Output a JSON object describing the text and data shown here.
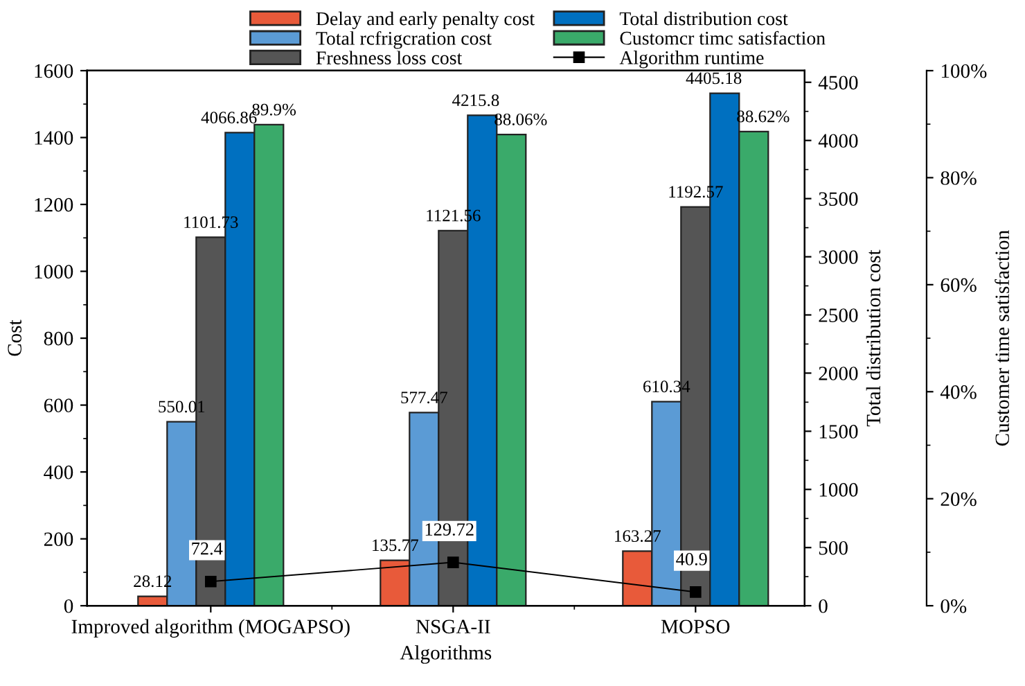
{
  "chart_data": {
    "type": "bar",
    "xlabel": "Algorithms",
    "ylabel": "Cost",
    "y2label": "Total distribution cost",
    "y3label": "Customer time satisfaction",
    "categories": [
      "Improved algorithm (MOGAPSO)",
      "NSGA-II",
      "MOPSO"
    ],
    "ylim": [
      0,
      1600
    ],
    "yticks": [
      0,
      200,
      400,
      600,
      800,
      1000,
      1200,
      1400,
      1600
    ],
    "y2lim": [
      0,
      4600
    ],
    "y2ticks": [
      0,
      500,
      1000,
      1500,
      2000,
      2500,
      3000,
      3500,
      4000,
      4500
    ],
    "y3lim": [
      0,
      100
    ],
    "y3ticks": [
      {
        "value": 0,
        "label": "0%"
      },
      {
        "value": 20,
        "label": "20%"
      },
      {
        "value": 40,
        "label": "40%"
      },
      {
        "value": 60,
        "label": "60%"
      },
      {
        "value": 80,
        "label": "80%"
      },
      {
        "value": 100,
        "label": "100%"
      }
    ],
    "legend": "top right",
    "grid": false,
    "series": [
      {
        "name": "Delay and early penalty cost",
        "color": "#e85a3a",
        "values": [
          28.12,
          135.77,
          163.27
        ],
        "value_labels": [
          "28.12",
          "135.77",
          "163.27"
        ]
      },
      {
        "name": "Total rcfrigcration cost",
        "color": "#5b9bd5",
        "values": [
          550.01,
          577.47,
          610.34
        ],
        "value_labels": [
          "550.01",
          "577.47",
          "610.34"
        ]
      },
      {
        "name": "Freshness loss cost",
        "color": "#555555",
        "values": [
          1101.73,
          1121.56,
          1192.57
        ],
        "value_labels": [
          "1101.73",
          "1121.56",
          "1192.57"
        ]
      },
      {
        "name": "Total distribution cost",
        "color": "#0070c0",
        "axis": "y2",
        "values": [
          4066.86,
          4215.8,
          4405.18
        ],
        "value_labels": [
          "4066.86",
          "4215.8",
          "4405.18"
        ]
      },
      {
        "name": "Customcr timc satisfaction",
        "color": "#3aaa6a",
        "axis": "y3",
        "values": [
          89.9,
          88.06,
          88.62
        ],
        "value_labels": [
          "89.9%",
          "88.06%",
          "88.62%"
        ]
      },
      {
        "name": "Algorithm runtime",
        "type": "line",
        "color": "#000000",
        "axis": "y",
        "marker": "square",
        "line_style": "solid",
        "values": [
          72.4,
          129.72,
          40.9
        ],
        "value_labels": [
          "72.4",
          "129.72",
          "40.9"
        ]
      }
    ]
  }
}
